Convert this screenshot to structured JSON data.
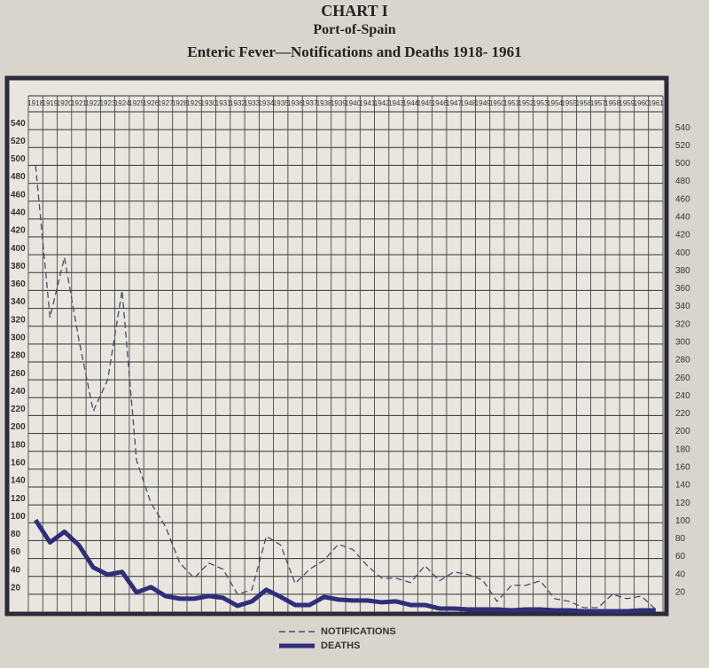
{
  "chart_data": {
    "type": "line",
    "title": "CHART I",
    "subtitle": "Port-of-Spain",
    "caption": "Enteric Fever—Notifications and Deaths 1918- 1961",
    "categories": [
      "1918",
      "1919",
      "1920",
      "1921",
      "1922",
      "1923",
      "1924",
      "1925",
      "1926",
      "1927",
      "1928",
      "1929",
      "1930",
      "1931",
      "1932",
      "1933",
      "1934",
      "1935",
      "1936",
      "1937",
      "1938",
      "1939",
      "1940",
      "1941",
      "1942",
      "1943",
      "1944",
      "1945",
      "1946",
      "1947",
      "1948",
      "1949",
      "1950",
      "1951",
      "1952",
      "1953",
      "1954",
      "1955",
      "1956",
      "1957",
      "1958",
      "1959",
      "1960",
      "1961"
    ],
    "series": [
      {
        "name": "NOTIFICATIONS",
        "color": "#4a4a6a",
        "dashed": true,
        "values": [
          500,
          330,
          397,
          305,
          225,
          260,
          360,
          170,
          122,
          96,
          55,
          38,
          55,
          48,
          20,
          25,
          85,
          75,
          32,
          48,
          58,
          76,
          70,
          52,
          38,
          38,
          33,
          52,
          35,
          45,
          42,
          36,
          12,
          30,
          30,
          35,
          15,
          12,
          5,
          5,
          20,
          15,
          18,
          3
        ]
      },
      {
        "name": "DEATHS",
        "color": "#2e2e7a",
        "dashed": false,
        "values": [
          103,
          78,
          90,
          75,
          50,
          42,
          45,
          22,
          28,
          18,
          15,
          15,
          18,
          16,
          7,
          12,
          25,
          17,
          8,
          8,
          17,
          14,
          13,
          13,
          11,
          12,
          8,
          8,
          4,
          4,
          3,
          3,
          3,
          2,
          3,
          3,
          2,
          2,
          1,
          1,
          1,
          1,
          2,
          2
        ]
      }
    ],
    "ylim": [
      0,
      560
    ],
    "yticks": [
      20,
      40,
      60,
      80,
      100,
      120,
      140,
      160,
      180,
      200,
      220,
      240,
      260,
      280,
      300,
      320,
      340,
      360,
      380,
      400,
      420,
      440,
      460,
      480,
      500,
      520,
      540
    ],
    "grid": true
  }
}
